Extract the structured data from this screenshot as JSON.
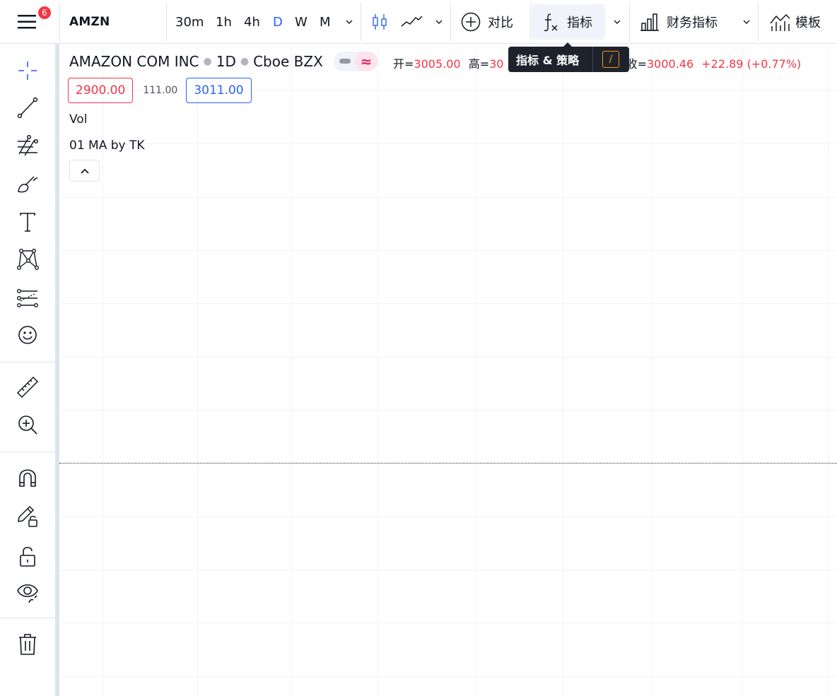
{
  "header": {
    "notifications_count": "6",
    "symbol": "AMZN",
    "intervals": [
      {
        "label": "30m",
        "active": false
      },
      {
        "label": "1h",
        "active": false
      },
      {
        "label": "4h",
        "active": false
      },
      {
        "label": "D",
        "active": true
      },
      {
        "label": "W",
        "active": false
      },
      {
        "label": "M",
        "active": false
      }
    ],
    "compare_label": "对比",
    "indicators_label": "指标",
    "financials_label": "财务指标",
    "templates_label": "模板"
  },
  "tooltip": {
    "text": "指标 & 策略",
    "shortcut": "/"
  },
  "legend": {
    "name": "AMAZON COM INC",
    "interval": "1D",
    "exchange": "Cboe BZX",
    "ohlc_prefix": "开=",
    "open": "3005.00",
    "high_label": "高=",
    "high_visible": "30",
    "close_label_visible": "收=",
    "close": "3000.46",
    "change": "+22.89",
    "change_pct": "(+0.77%)"
  },
  "trade": {
    "sell": "2900.00",
    "spread": "111.00",
    "buy": "3011.00"
  },
  "studies": [
    {
      "label": "Vol"
    },
    {
      "label": "01 MA by TK"
    }
  ],
  "colors": {
    "accent": "#2962ff",
    "down": "#f23645",
    "tooltip_bg": "#1e222d",
    "shortcut": "#ff9800"
  },
  "left_tools": [
    "crosshair-icon",
    "trend-line-icon",
    "fib-retracement-icon",
    "brush-icon",
    "text-icon",
    "pattern-icon",
    "prediction-icon",
    "emoji-icon",
    "ruler-icon",
    "zoom-in-icon",
    "magnet-icon",
    "lock-drawings-icon",
    "unlock-icon",
    "eye-icon",
    "trash-icon"
  ]
}
